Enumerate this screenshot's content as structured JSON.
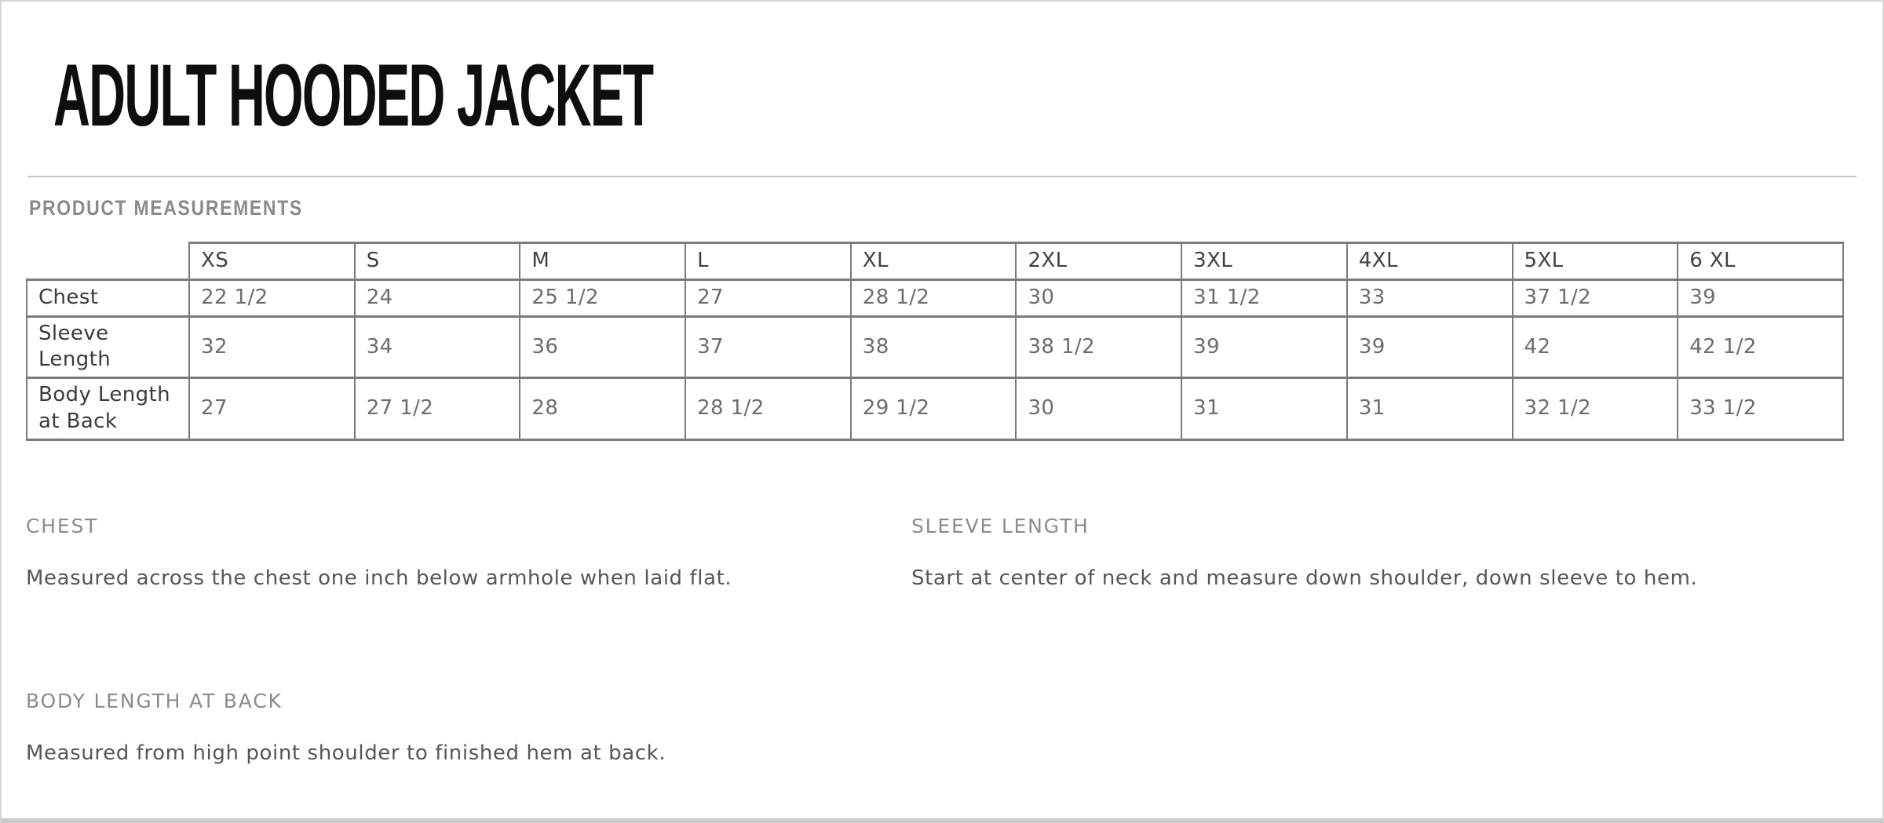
{
  "page": {
    "title": "ADULT HOODED JACKET",
    "section_title": "PRODUCT MEASUREMENTS"
  },
  "table": {
    "columns": [
      "XS",
      "S",
      "M",
      "L",
      "XL",
      "2XL",
      "3XL",
      "4XL",
      "5XL",
      "6 XL"
    ],
    "rows": [
      {
        "label": "Chest",
        "values": [
          "22 1/2",
          "24",
          "25 1/2",
          "27",
          "28 1/2",
          "30",
          "31 1/2",
          "33",
          "37 1/2",
          "39"
        ]
      },
      {
        "label": "Sleeve Length",
        "values": [
          "32",
          "34",
          "36",
          "37",
          "38",
          "38 1/2",
          "39",
          "39",
          "42",
          "42 1/2"
        ]
      },
      {
        "label": "Body Length at Back",
        "values": [
          "27",
          "27 1/2",
          "28",
          "28 1/2",
          "29 1/2",
          "30",
          "31",
          "31",
          "32 1/2",
          "33 1/2"
        ]
      }
    ]
  },
  "definitions": [
    {
      "heading": "CHEST",
      "text": "Measured across the chest one inch below armhole when laid flat."
    },
    {
      "heading": "SLEEVE LENGTH",
      "text": "Start at center of neck and measure down shoulder, down sleeve to hem."
    },
    {
      "heading": "BODY LENGTH AT BACK",
      "text": "Measured from high point shoulder to finished hem at back."
    }
  ],
  "colors": {
    "table_border": "#7b7b7b",
    "section_heading_gray": "#8a8a8a",
    "row_label_text": "#3a3a3a",
    "value_text": "#6d6d6d",
    "page_border": "#d6d6d6"
  }
}
